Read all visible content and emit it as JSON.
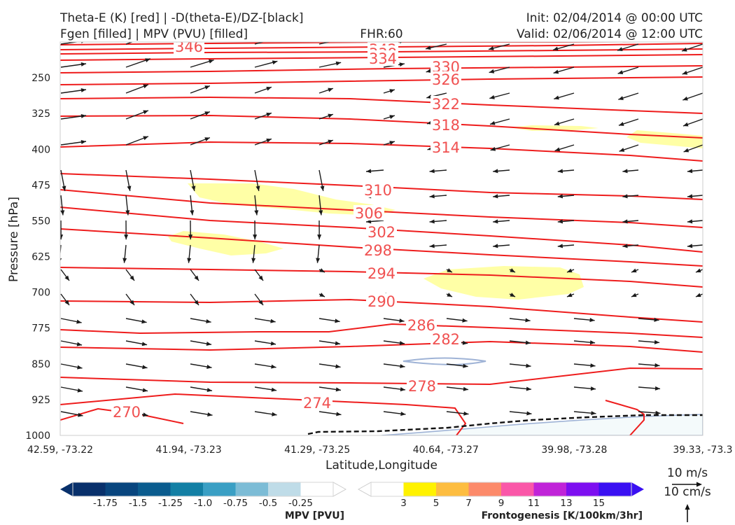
{
  "header": {
    "left_line1": "Theta-E (K) [red] | -D(theta-E)/DZ-[black]",
    "left_line2": "Fgen [filled] | MPV (PVU) [filled]",
    "center": "FHR:60",
    "right_line1": "Init: 02/04/2014 @ 00:00 UTC",
    "right_line2": "Valid: 02/06/2014 @ 12:00 UTC"
  },
  "colors": {
    "theta_e": "#ee1c1c",
    "theta_e_label": "#f05050",
    "vectors": "#1a1a1a",
    "fgen_fill": "#ffffa6",
    "mpv_outline": "#9fb3d6"
  },
  "chart_data": {
    "type": "contour",
    "xlabel": "Latitude,Longitude",
    "ylabel": "Pressure [hPa]",
    "x_ticks": [
      "42.59, -73.22",
      "41.94, -73.23",
      "41.29, -73.25",
      "40.64, -73.27",
      "39.98, -73.28",
      "39.33, -73.3"
    ],
    "y_ticks": [
      250,
      325,
      400,
      475,
      550,
      625,
      700,
      775,
      850,
      925,
      1000
    ],
    "ylim": [
      1000,
      175
    ],
    "y_inverted": true,
    "theta_e_contours": [
      {
        "level": 346,
        "label": "346"
      },
      {
        "level": 342,
        "label": "342"
      },
      {
        "level": 338,
        "label": "338"
      },
      {
        "level": 334,
        "label": "334"
      },
      {
        "level": 330,
        "label": "330"
      },
      {
        "level": 326,
        "label": "326"
      },
      {
        "level": 322,
        "label": "322"
      },
      {
        "level": 318,
        "label": "318"
      },
      {
        "level": 314,
        "label": "314"
      },
      {
        "level": 310,
        "label": "310"
      },
      {
        "level": 306,
        "label": "306"
      },
      {
        "level": 302,
        "label": "302"
      },
      {
        "level": 298,
        "label": "298"
      },
      {
        "level": 294,
        "label": "294"
      },
      {
        "level": 290,
        "label": "290"
      },
      {
        "level": 286,
        "label": "286"
      },
      {
        "level": 282,
        "label": "282"
      },
      {
        "level": 278,
        "label": "278"
      },
      {
        "level": 274,
        "label": "274"
      },
      {
        "level": 270,
        "label": "270"
      }
    ],
    "mpv_colorbar": {
      "title": "MPV [PVU]",
      "ticks": [
        "-1.75",
        "-1.5",
        "-1.25",
        "-1.0",
        "-0.75",
        "-0.5",
        "-0.25"
      ],
      "colors": [
        "#08306b",
        "#08457e",
        "#0b5c8e",
        "#137fa4",
        "#3a9fc4",
        "#7cbcd6",
        "#bfdce8",
        "#ffffff"
      ]
    },
    "fgen_colorbar": {
      "title": "Frontogenesis [K/100km/3hr]",
      "ticks": [
        "3",
        "5",
        "7",
        "9",
        "11",
        "13",
        "15"
      ],
      "colors": [
        "#ffffff",
        "#fff200",
        "#fdbd40",
        "#fc8a6a",
        "#fa57a8",
        "#c024d8",
        "#7d0ff0",
        "#3a10f2"
      ]
    },
    "vector_reference": {
      "horizontal": "10 m/s",
      "vertical": "10 cm/s"
    }
  }
}
